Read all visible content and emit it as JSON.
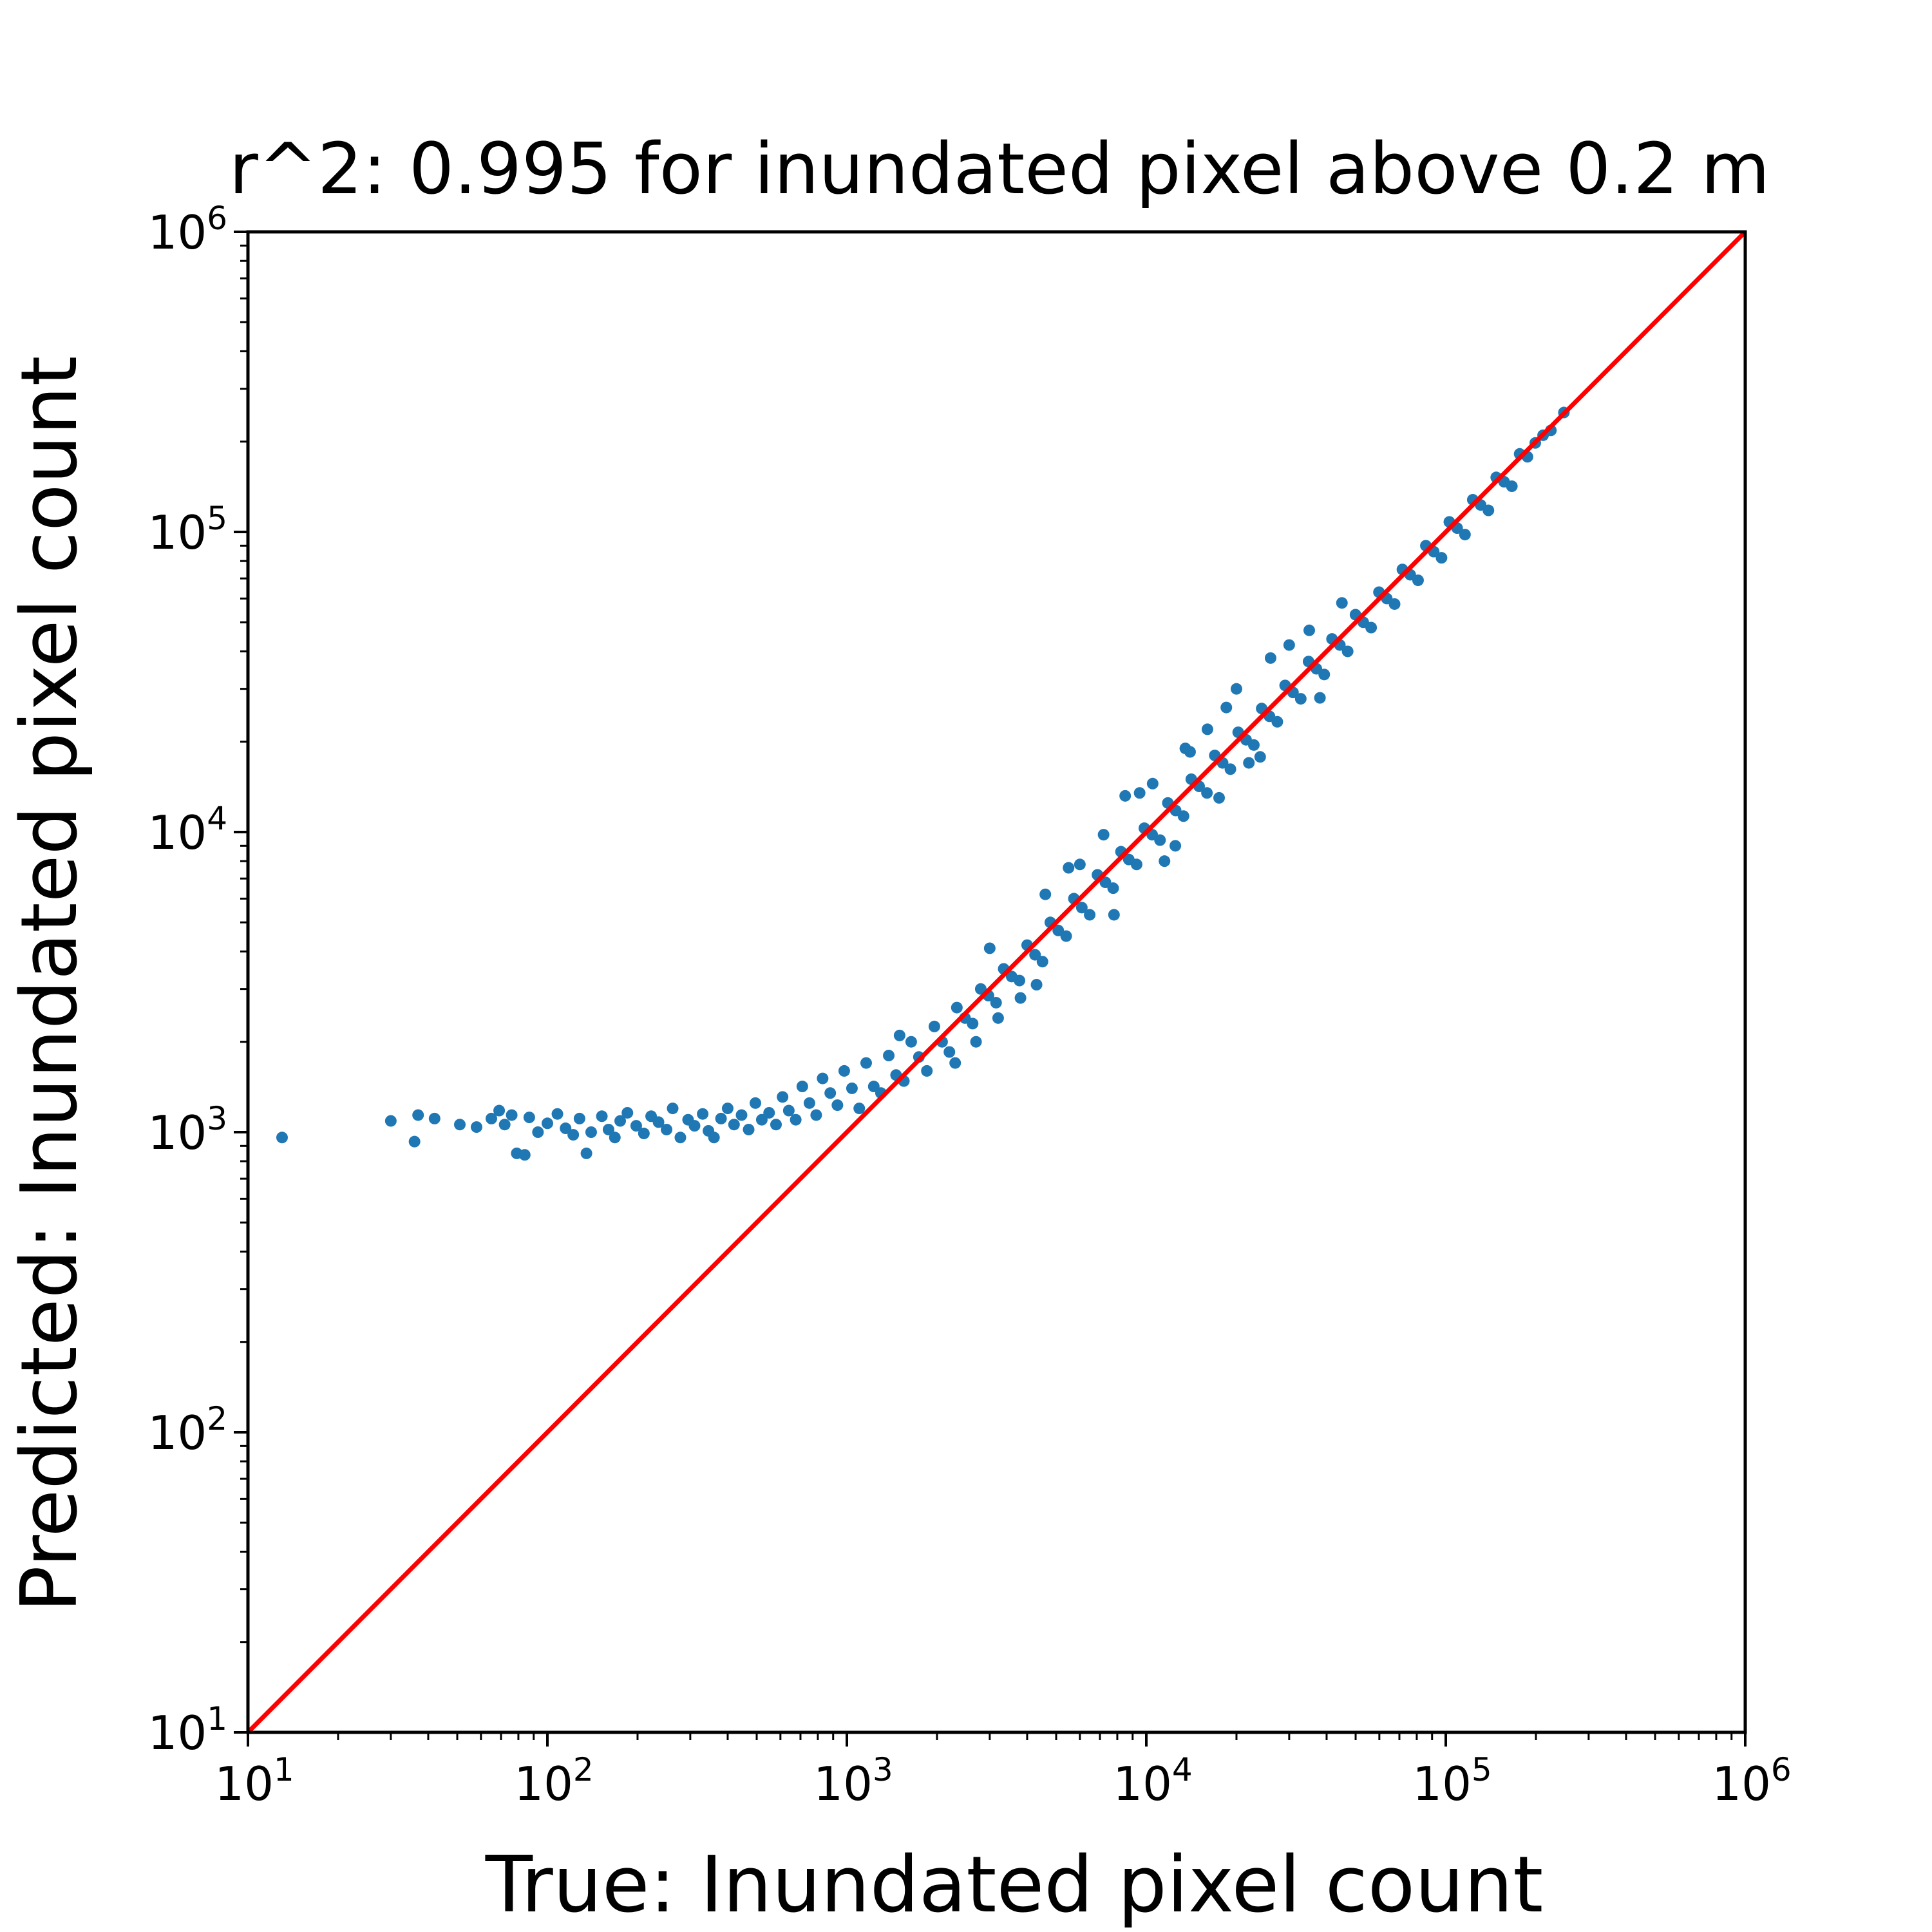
{
  "chart_data": {
    "type": "scatter",
    "title": "r^2: 0.995 for inundated pixel above 0.2 m",
    "xlabel": "True: Inundated pixel count",
    "ylabel": "Predicted: Inundated pixel count",
    "xscale": "log",
    "yscale": "log",
    "xlim": [
      10,
      1000000
    ],
    "ylim": [
      10,
      1000000
    ],
    "x_ticks": [
      {
        "base": "10",
        "exp": "1"
      },
      {
        "base": "10",
        "exp": "2"
      },
      {
        "base": "10",
        "exp": "3"
      },
      {
        "base": "10",
        "exp": "4"
      },
      {
        "base": "10",
        "exp": "5"
      },
      {
        "base": "10",
        "exp": "6"
      }
    ],
    "y_ticks": [
      {
        "base": "10",
        "exp": "1"
      },
      {
        "base": "10",
        "exp": "2"
      },
      {
        "base": "10",
        "exp": "3"
      },
      {
        "base": "10",
        "exp": "4"
      },
      {
        "base": "10",
        "exp": "5"
      },
      {
        "base": "10",
        "exp": "6"
      }
    ],
    "grid": false,
    "legend": "none",
    "series": [
      {
        "kind": "scatter",
        "color": "#1f77b4",
        "points": [
          [
            13,
            960
          ],
          [
            30,
            1090
          ],
          [
            36,
            930
          ],
          [
            37,
            1140
          ],
          [
            42,
            1110
          ],
          [
            51,
            1060
          ],
          [
            58,
            1040
          ],
          [
            65,
            1110
          ],
          [
            69,
            1180
          ],
          [
            72,
            1060
          ],
          [
            76,
            1140
          ],
          [
            79,
            850
          ],
          [
            84,
            840
          ],
          [
            87,
            1120
          ],
          [
            93,
            1000
          ],
          [
            100,
            1070
          ],
          [
            108,
            1150
          ],
          [
            115,
            1030
          ],
          [
            122,
            980
          ],
          [
            128,
            1110
          ],
          [
            135,
            850
          ],
          [
            140,
            1000
          ],
          [
            152,
            1130
          ],
          [
            160,
            1020
          ],
          [
            168,
            960
          ],
          [
            175,
            1090
          ],
          [
            185,
            1160
          ],
          [
            198,
            1050
          ],
          [
            210,
            990
          ],
          [
            222,
            1130
          ],
          [
            235,
            1080
          ],
          [
            250,
            1020
          ],
          [
            262,
            1200
          ],
          [
            278,
            960
          ],
          [
            295,
            1100
          ],
          [
            310,
            1050
          ],
          [
            330,
            1150
          ],
          [
            345,
            1010
          ],
          [
            360,
            960
          ],
          [
            380,
            1110
          ],
          [
            400,
            1200
          ],
          [
            420,
            1060
          ],
          [
            445,
            1140
          ],
          [
            470,
            1020
          ],
          [
            495,
            1250
          ],
          [
            520,
            1100
          ],
          [
            550,
            1160
          ],
          [
            580,
            1060
          ],
          [
            610,
            1310
          ],
          [
            640,
            1180
          ],
          [
            675,
            1100
          ],
          [
            710,
            1420
          ],
          [
            750,
            1250
          ],
          [
            790,
            1140
          ],
          [
            830,
            1510
          ],
          [
            880,
            1350
          ],
          [
            930,
            1230
          ],
          [
            980,
            1600
          ],
          [
            1040,
            1400
          ],
          [
            1100,
            1200
          ],
          [
            1160,
            1700
          ],
          [
            1230,
            1420
          ],
          [
            1300,
            1350
          ],
          [
            1380,
            1800
          ],
          [
            1460,
            1550
          ],
          [
            1550,
            1480
          ],
          [
            1640,
            2000
          ],
          [
            1740,
            1780
          ],
          [
            1850,
            1600
          ],
          [
            1960,
            2250
          ],
          [
            2080,
            2000
          ],
          [
            2200,
            1850
          ],
          [
            2330,
            2600
          ],
          [
            2480,
            2400
          ],
          [
            2630,
            2300
          ],
          [
            2800,
            3000
          ],
          [
            2970,
            2850
          ],
          [
            3150,
            2700
          ],
          [
            3340,
            3500
          ],
          [
            3550,
            3300
          ],
          [
            3770,
            3200
          ],
          [
            4000,
            4200
          ],
          [
            4250,
            3900
          ],
          [
            4500,
            3700
          ],
          [
            4780,
            5000
          ],
          [
            5080,
            4700
          ],
          [
            5400,
            4500
          ],
          [
            5730,
            6000
          ],
          [
            6090,
            5600
          ],
          [
            6470,
            5300
          ],
          [
            6870,
            7200
          ],
          [
            7300,
            6800
          ],
          [
            7750,
            6500
          ],
          [
            8230,
            8600
          ],
          [
            8740,
            8100
          ],
          [
            9280,
            7800
          ],
          [
            9850,
            10300
          ],
          [
            10460,
            9800
          ],
          [
            11110,
            9400
          ],
          [
            11800,
            12500
          ],
          [
            12530,
            11800
          ],
          [
            13310,
            11300
          ],
          [
            14130,
            15000
          ],
          [
            15010,
            14200
          ],
          [
            15940,
            13500
          ],
          [
            16930,
            18000
          ],
          [
            17980,
            17000
          ],
          [
            19090,
            16200
          ],
          [
            20270,
            21500
          ],
          [
            21530,
            20300
          ],
          [
            22860,
            19500
          ],
          [
            24280,
            25800
          ],
          [
            25780,
            24300
          ],
          [
            27380,
            23300
          ],
          [
            29080,
            30800
          ],
          [
            30880,
            29200
          ],
          [
            32790,
            27800
          ],
          [
            34820,
            37000
          ],
          [
            36980,
            35000
          ],
          [
            39270,
            33500
          ],
          [
            41700,
            44000
          ],
          [
            44290,
            42000
          ],
          [
            47030,
            40000
          ],
          [
            49950,
            53000
          ],
          [
            53040,
            50000
          ],
          [
            56330,
            48000
          ],
          [
            59820,
            63000
          ],
          [
            63530,
            60000
          ],
          [
            67460,
            57500
          ],
          [
            71640,
            75000
          ],
          [
            76080,
            72000
          ],
          [
            80800,
            69000
          ],
          [
            85800,
            90000
          ],
          [
            91120,
            86000
          ],
          [
            96770,
            82000
          ],
          [
            102770,
            108000
          ],
          [
            109130,
            103000
          ],
          [
            115900,
            98000
          ],
          [
            123080,
            128000
          ],
          [
            130710,
            123000
          ],
          [
            138800,
            118000
          ],
          [
            147400,
            152000
          ],
          [
            156500,
            147000
          ],
          [
            166200,
            142000
          ],
          [
            176500,
            182000
          ],
          [
            187400,
            178000
          ],
          [
            199000,
            198000
          ],
          [
            211300,
            210000
          ],
          [
            224400,
            218000
          ],
          [
            248000,
            250000
          ],
          [
            6000,
            7800
          ],
          [
            7800,
            5300
          ],
          [
            9500,
            13500
          ],
          [
            11500,
            8000
          ],
          [
            14000,
            18500
          ],
          [
            17500,
            13000
          ],
          [
            8500,
            13200
          ],
          [
            18500,
            26000
          ],
          [
            24000,
            17800
          ],
          [
            30000,
            42000
          ],
          [
            38000,
            28000
          ],
          [
            45000,
            58000
          ],
          [
            3000,
            4100
          ],
          [
            2300,
            1700
          ],
          [
            1500,
            2100
          ],
          [
            2700,
            2000
          ],
          [
            4600,
            6200
          ],
          [
            3800,
            2800
          ],
          [
            13500,
            19000
          ],
          [
            16000,
            22000
          ],
          [
            10500,
            14500
          ],
          [
            20000,
            30000
          ],
          [
            26000,
            38000
          ],
          [
            12500,
            9000
          ],
          [
            22000,
            17000
          ],
          [
            35000,
            47000
          ],
          [
            5500,
            7600
          ],
          [
            4300,
            3100
          ],
          [
            7200,
            9800
          ],
          [
            3200,
            2400
          ]
        ]
      },
      {
        "kind": "line",
        "color": "#ff0000",
        "points": [
          [
            10,
            10
          ],
          [
            1000000,
            1000000
          ]
        ]
      }
    ]
  }
}
